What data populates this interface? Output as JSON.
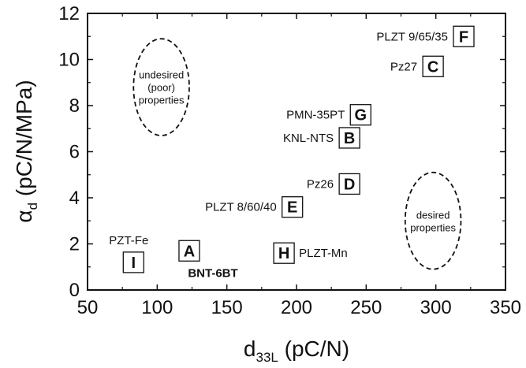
{
  "chart_data": {
    "type": "scatter",
    "xlabel": {
      "main": "d",
      "sub": "33L",
      "rest": " (pC/N)"
    },
    "ylabel": {
      "main": "α",
      "sub": "d",
      "rest": " (pC/N/MPa)"
    },
    "xlim": [
      50,
      350
    ],
    "ylim": [
      0,
      12
    ],
    "xticks": [
      50,
      100,
      150,
      200,
      250,
      300,
      350
    ],
    "yticks": [
      0,
      2,
      4,
      6,
      8,
      10,
      12
    ],
    "grid": false,
    "points": [
      {
        "id": "A",
        "label": "",
        "x": 123,
        "y": 1.7,
        "label_color": "#111111",
        "bold": false
      },
      {
        "id": "B",
        "label": "KNL-NTS",
        "x": 238,
        "y": 6.6,
        "label_color": "#800080",
        "bold": false
      },
      {
        "id": "C",
        "label": "Pz27",
        "x": 298,
        "y": 9.7,
        "label_color": "#111111",
        "bold": false
      },
      {
        "id": "D",
        "label": "Pz26",
        "x": 238,
        "y": 4.6,
        "label_color": "#111111",
        "bold": false
      },
      {
        "id": "E",
        "label": "PLZT 8/60/40",
        "x": 197,
        "y": 3.6,
        "label_color": "#111111",
        "bold": false
      },
      {
        "id": "F",
        "label": "PLZT 9/65/35",
        "x": 320,
        "y": 11.0,
        "label_color": "#111111",
        "bold": false
      },
      {
        "id": "G",
        "label": "PMN-35PT",
        "x": 246,
        "y": 7.6,
        "label_color": "#111111",
        "bold": false
      },
      {
        "id": "H",
        "label": "PLZT-Mn",
        "x": 191,
        "y": 1.6,
        "label_color": "#111111",
        "bold": false
      },
      {
        "id": "I",
        "label": "PZT-Fe",
        "x": 83,
        "y": 1.2,
        "label_color": "#111111",
        "bold": false
      },
      {
        "id": "",
        "label": "BNT-6BT",
        "x": 140,
        "y": 0.7,
        "label_color": "#1a1a7a",
        "bold": true
      }
    ],
    "regions": [
      {
        "lines": [
          "undesired",
          "(poor)",
          "properties"
        ],
        "x": 103,
        "y": 8.8,
        "rx": 20,
        "ry": 2.1
      },
      {
        "lines": [
          "desired",
          "properties"
        ],
        "x": 298,
        "y": 3.0,
        "rx": 20,
        "ry": 2.1
      }
    ]
  }
}
